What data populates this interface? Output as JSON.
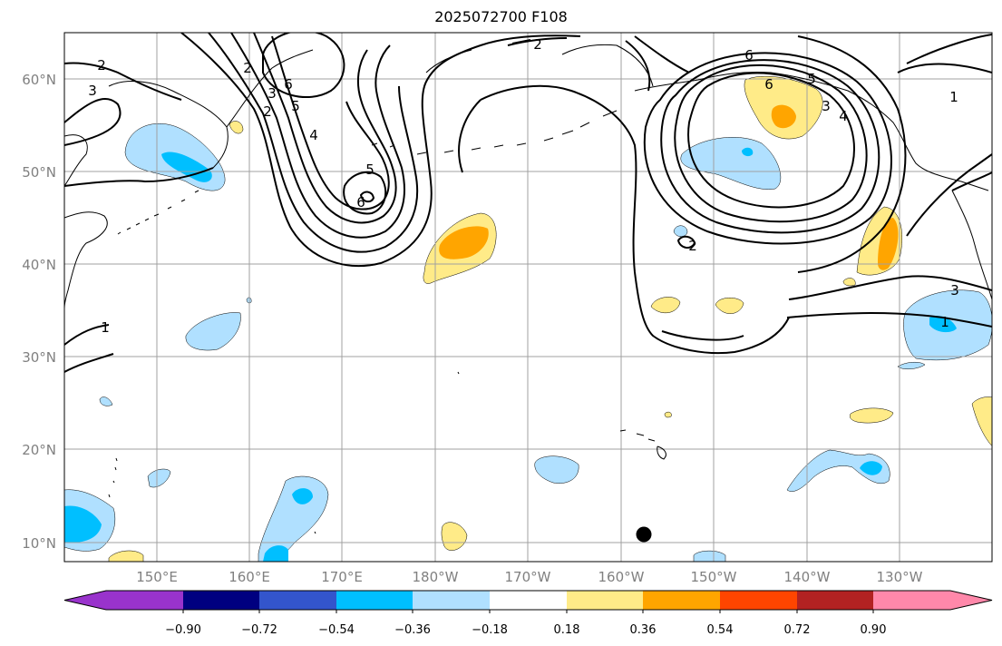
{
  "title": "2025072700 F108",
  "lat_labels": [
    "60°N",
    "50°N",
    "40°N",
    "30°N",
    "20°N",
    "10°N"
  ],
  "lon_labels": [
    "150°E",
    "160°E",
    "170°E",
    "180°W",
    "170°W",
    "160°W",
    "150°W",
    "140°W",
    "130°W"
  ],
  "colorbar": {
    "ticks": [
      "−0.90",
      "−0.72",
      "−0.54",
      "−0.36",
      "−0.18",
      "0.18",
      "0.36",
      "0.54",
      "0.72",
      "0.90"
    ],
    "colors": [
      "#9933cc",
      "#000080",
      "#3355cc",
      "#00bfff",
      "#b0e0ff",
      "#ffffff",
      "#ffeb88",
      "#ffa500",
      "#ff4500",
      "#b22222",
      "#ff88aa"
    ]
  },
  "contour_labels": [
    "2",
    "3",
    "2",
    "5",
    "6",
    "6",
    "2",
    "5",
    "4",
    "6",
    "2",
    "6",
    "5",
    "4",
    "3",
    "1",
    "3",
    "1",
    "1",
    "2",
    "3"
  ],
  "colors": {
    "light_blue": "#b0e0ff",
    "blue": "#00bfff",
    "light_yellow": "#ffeb88",
    "orange": "#ffa500",
    "grid": "#a0a0a0"
  }
}
